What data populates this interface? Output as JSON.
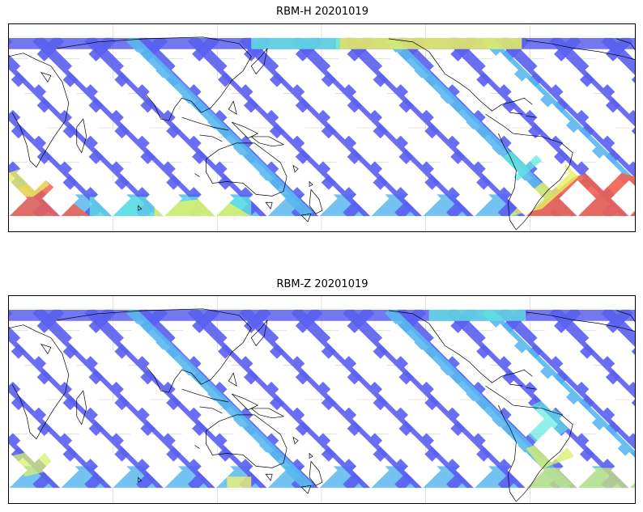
{
  "panels": [
    {
      "title": "RBM-H 20201019",
      "variant": "H",
      "colors": {
        "low": "#5a60f0",
        "mid": "#5ab8f0",
        "cyan": "#60e8e0",
        "yellow": "#e8f060",
        "high": "#f06050"
      }
    },
    {
      "title": "RBM-Z 20201019",
      "variant": "Z",
      "colors": {
        "low": "#5a60f0",
        "mid": "#5ab8f0",
        "cyan": "#60e8e0",
        "yellow": "#d8f070",
        "high": "#f0f070"
      }
    }
  ],
  "map": {
    "projection": "Plate Carree centered on Pacific",
    "gridlines": true,
    "coastlines": true
  }
}
